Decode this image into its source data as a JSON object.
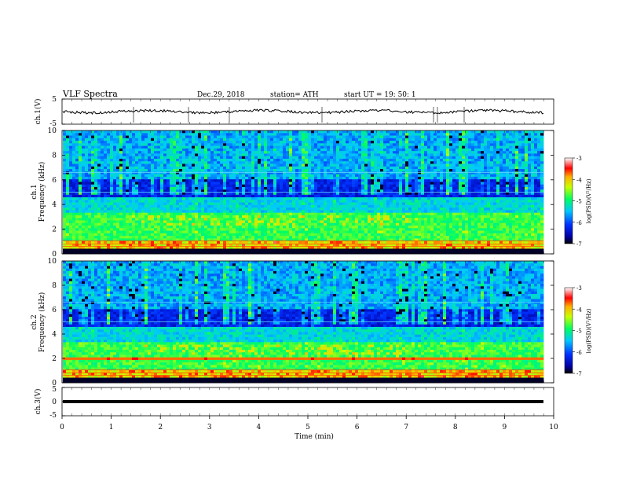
{
  "header": {
    "title": "VLF  Spectra",
    "date": "Dec.29, 2018",
    "station": "station= ATH",
    "start": "start  UT  =    19: 50: 1"
  },
  "chart_data": [
    {
      "type": "line",
      "panel": "ch1-waveform",
      "ylabel": "ch.1(V)",
      "ylim": [
        -5,
        5
      ],
      "yticks": [
        "5",
        "-5"
      ],
      "series": [
        {
          "values_description_free": true,
          "baseline": 0
        }
      ]
    },
    {
      "type": "heatmap",
      "panel": "ch1-spectrogram",
      "ylabel": "ch.1\nFrequency  (kHz)",
      "ylim": [
        0,
        10
      ],
      "yticks": [
        "0",
        "2",
        "4",
        "6",
        "8",
        "10"
      ],
      "colorbar": {
        "label": "log(PSD)(V²/Hz)",
        "range": [
          -7,
          -3
        ],
        "ticks": [
          "-3",
          "-4",
          "-5",
          "-6",
          "-7"
        ]
      }
    },
    {
      "type": "heatmap",
      "panel": "ch2-spectrogram",
      "ylabel": "ch.2\nFrequency  (kHz)",
      "ylim": [
        0,
        10
      ],
      "yticks": [
        "0",
        "2",
        "4",
        "6",
        "8",
        "10"
      ],
      "colorbar": {
        "label": "log(PSD)(V²/Hz)",
        "range": [
          -7,
          -3
        ],
        "ticks": [
          "-3",
          "-4",
          "-5",
          "-6",
          "-7"
        ]
      }
    },
    {
      "type": "line",
      "panel": "ch3-waveform",
      "ylabel": "ch.3(V)",
      "ylim": [
        -5,
        5
      ],
      "yticks": [
        "5",
        "0",
        "-5"
      ],
      "series": [
        {
          "baseline": 0
        }
      ]
    }
  ],
  "xaxis": {
    "label": "Time  (min)",
    "range": [
      0,
      10
    ],
    "ticks": [
      "0",
      "1",
      "2",
      "3",
      "4",
      "5",
      "6",
      "7",
      "8",
      "9",
      "10"
    ]
  }
}
